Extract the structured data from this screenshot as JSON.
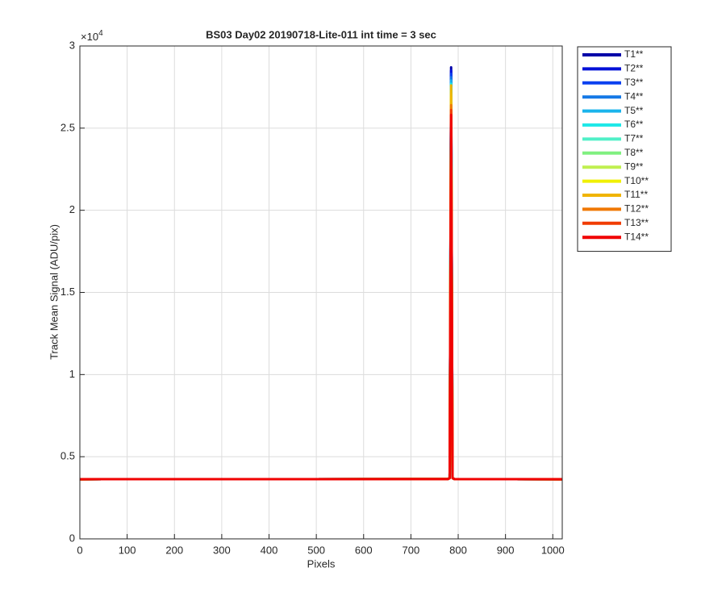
{
  "chart_data": {
    "type": "line",
    "title": "BS03 Day02 20190718-Lite-011 int time = 3 sec",
    "x_label": "Pixels",
    "y_label": "Track Mean Signal (ADU/pix)",
    "y_multiplier_base": "×10",
    "y_multiplier_exponent": "4",
    "x": [
      0,
      778,
      782,
      785,
      788,
      792,
      1020
    ],
    "xlim": [
      0,
      1020
    ],
    "xticks": [
      0,
      100,
      200,
      300,
      400,
      500,
      600,
      700,
      800,
      900,
      1000
    ],
    "ylim": [
      0,
      30000
    ],
    "yticks": [
      {
        "value": 0,
        "label": "0"
      },
      {
        "value": 5000,
        "label": "0.5"
      },
      {
        "value": 10000,
        "label": "1"
      },
      {
        "value": 15000,
        "label": "1.5"
      },
      {
        "value": 20000,
        "label": "2"
      },
      {
        "value": 25000,
        "label": "2.5"
      },
      {
        "value": 30000,
        "label": "3"
      }
    ],
    "grid": true,
    "legend": "outside-right",
    "series": [
      {
        "name": "T1**",
        "color": "#0000a8",
        "values": [
          3630,
          3640,
          3700,
          28700,
          3700,
          3640,
          3630
        ]
      },
      {
        "name": "T2**",
        "color": "#0010d8",
        "values": [
          3630,
          3640,
          3700,
          28500,
          3700,
          3640,
          3630
        ]
      },
      {
        "name": "T3**",
        "color": "#0a40f0",
        "values": [
          3630,
          3640,
          3700,
          28300,
          3700,
          3640,
          3630
        ]
      },
      {
        "name": "T4**",
        "color": "#1478e6",
        "values": [
          3630,
          3640,
          3700,
          28100,
          3700,
          3640,
          3630
        ]
      },
      {
        "name": "T5**",
        "color": "#1ab4ec",
        "values": [
          3630,
          3640,
          3700,
          27900,
          3700,
          3640,
          3630
        ]
      },
      {
        "name": "T6**",
        "color": "#20e8e8",
        "values": [
          3630,
          3640,
          3700,
          27700,
          3700,
          3640,
          3630
        ]
      },
      {
        "name": "T7**",
        "color": "#50f0c8",
        "values": [
          3630,
          3640,
          3700,
          27500,
          3700,
          3640,
          3630
        ]
      },
      {
        "name": "T8**",
        "color": "#80f080",
        "values": [
          3630,
          3640,
          3700,
          27300,
          3700,
          3640,
          3630
        ]
      },
      {
        "name": "T9**",
        "color": "#c0f050",
        "values": [
          3630,
          3640,
          3700,
          27100,
          3700,
          3640,
          3630
        ]
      },
      {
        "name": "T10**",
        "color": "#f0f000",
        "values": [
          3630,
          3640,
          3700,
          26900,
          3700,
          3640,
          3630
        ]
      },
      {
        "name": "T11**",
        "color": "#f0b400",
        "values": [
          3630,
          3640,
          3700,
          27600,
          3700,
          3640,
          3630
        ]
      },
      {
        "name": "T12**",
        "color": "#f07800",
        "values": [
          3630,
          3640,
          3700,
          26400,
          3700,
          3640,
          3630
        ]
      },
      {
        "name": "T13**",
        "color": "#f03c00",
        "values": [
          3630,
          3640,
          3700,
          26100,
          3700,
          3640,
          3630
        ]
      },
      {
        "name": "T14**",
        "color": "#f00000",
        "values": [
          3630,
          3640,
          3700,
          25800,
          3700,
          3640,
          3630
        ]
      }
    ]
  }
}
